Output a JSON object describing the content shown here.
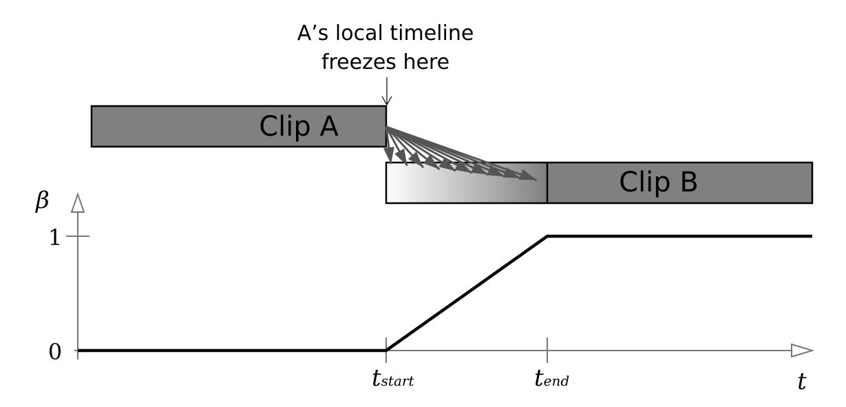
{
  "annotation": {
    "line1": "A’s local timeline",
    "line2": "freezes here"
  },
  "clips": {
    "a": {
      "label": "Clip A"
    },
    "b": {
      "label": "Clip B"
    }
  },
  "axes": {
    "y_label": "β",
    "y_tick_1": "1",
    "y_tick_0": "0",
    "x_label": "t",
    "t_start": {
      "base": "t",
      "sub": "start"
    },
    "t_end": {
      "base": "t",
      "sub": "end"
    }
  },
  "colors": {
    "clip_fill": "#808080",
    "arrow_color": "#555555",
    "axis_color": "#777777",
    "curve_color": "#000000"
  },
  "chart_data": {
    "type": "line",
    "series": [
      {
        "x": [
          "start of axis",
          "t_start",
          "t_end",
          "end of axis"
        ],
        "y": [
          0,
          0,
          1,
          1
        ]
      }
    ],
    "yticks": [
      0,
      1
    ]
  }
}
